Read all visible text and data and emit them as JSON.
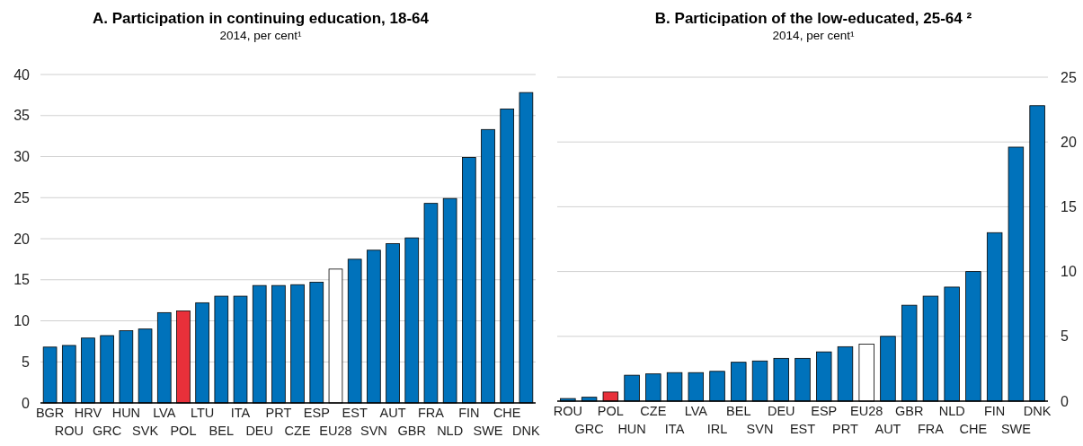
{
  "chart_data": [
    {
      "type": "bar",
      "title": "A. Participation in continuing education, 18-64",
      "subtitle": "2014, per cent¹",
      "categories": [
        "BGR",
        "ROU",
        "HRV",
        "GRC",
        "HUN",
        "SVK",
        "LVA",
        "POL",
        "LTU",
        "BEL",
        "ITA",
        "DEU",
        "PRT",
        "CZE",
        "ESP",
        "EU28",
        "EST",
        "SVN",
        "AUT",
        "GBR",
        "FRA",
        "NLD",
        "FIN",
        "SWE",
        "CHE",
        "DNK"
      ],
      "series": [
        {
          "values": [
            6.8,
            7.0,
            7.9,
            8.2,
            8.8,
            9.0,
            11.0,
            11.2,
            12.2,
            13.0,
            13.0,
            14.3,
            14.3,
            14.4,
            14.7,
            16.3,
            17.5,
            18.6,
            19.4,
            20.1,
            24.3,
            24.9,
            29.9,
            33.3,
            35.8,
            37.8
          ],
          "colors": [
            "#0072bb",
            "#0072bb",
            "#0072bb",
            "#0072bb",
            "#0072bb",
            "#0072bb",
            "#0072bb",
            "#e8303a",
            "#0072bb",
            "#0072bb",
            "#0072bb",
            "#0072bb",
            "#0072bb",
            "#0072bb",
            "#0072bb",
            "#ffffff",
            "#0072bb",
            "#0072bb",
            "#0072bb",
            "#0072bb",
            "#0072bb",
            "#0072bb",
            "#0072bb",
            "#0072bb",
            "#0072bb",
            "#0072bb"
          ]
        }
      ],
      "ylim": [
        0,
        40
      ],
      "yticks": [
        0,
        5,
        10,
        15,
        20,
        25,
        30,
        35,
        40
      ],
      "grid": "y"
    },
    {
      "type": "bar",
      "title": "B. Participation of the low-educated, 25-64 ²",
      "subtitle": "2014, per cent¹",
      "categories": [
        "ROU",
        "GRC",
        "POL",
        "HUN",
        "CZE",
        "ITA",
        "LVA",
        "IRL",
        "BEL",
        "SVN",
        "DEU",
        "EST",
        "ESP",
        "PRT",
        "EU28",
        "AUT",
        "GBR",
        "FRA",
        "NLD",
        "CHE",
        "FIN",
        "SWE",
        "DNK"
      ],
      "series": [
        {
          "axis": "y2",
          "values": [
            0.2,
            0.3,
            0.7,
            2.0,
            2.1,
            2.2,
            2.2,
            2.3,
            3.0,
            3.1,
            3.3,
            3.3,
            3.8,
            4.2,
            4.4,
            5.0,
            7.4,
            8.1,
            8.8,
            10.0,
            13.0,
            19.6,
            22.8
          ],
          "colors": [
            "#0072bb",
            "#0072bb",
            "#e8303a",
            "#0072bb",
            "#0072bb",
            "#0072bb",
            "#0072bb",
            "#0072bb",
            "#0072bb",
            "#0072bb",
            "#0072bb",
            "#0072bb",
            "#0072bb",
            "#0072bb",
            "#ffffff",
            "#0072bb",
            "#0072bb",
            "#0072bb",
            "#0072bb",
            "#0072bb",
            "#0072bb",
            "#0072bb",
            "#0072bb"
          ]
        }
      ],
      "y2lim": [
        0,
        25
      ],
      "y2ticks": [
        0,
        5,
        10,
        15,
        20,
        25
      ],
      "grid": "y"
    }
  ]
}
